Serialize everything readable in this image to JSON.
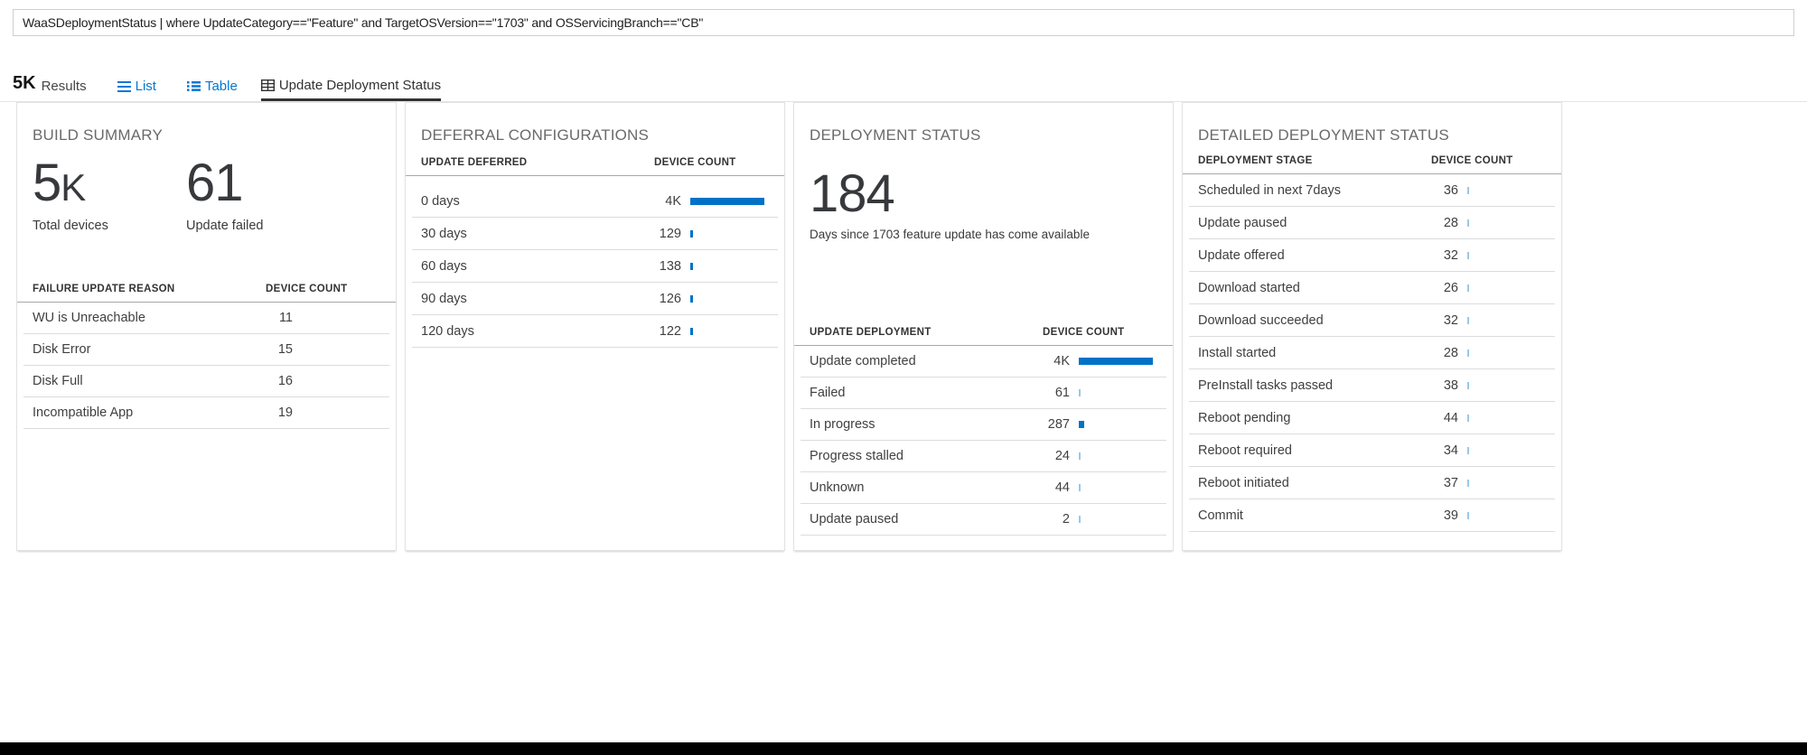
{
  "colors": {
    "accent_blue": "#0078d4",
    "bar_strong": "#0072c6",
    "bar_light": "#9cc7e8",
    "tab_active": "#323232"
  },
  "query_bar": {
    "text": "WaaSDeploymentStatus | where UpdateCategory==\"Feature\" and TargetOSVersion==\"1703\" and OSServicingBranch==\"CB\""
  },
  "results_bar": {
    "count": "5K",
    "count_label": "Results",
    "tabs": [
      {
        "label": "List",
        "icon": "list-icon"
      },
      {
        "label": "Table",
        "icon": "table-icon"
      },
      {
        "label": "Update Deployment Status",
        "icon": "grid-table-icon",
        "active": true
      }
    ]
  },
  "panels": {
    "build_summary": {
      "title": "BUILD SUMMARY",
      "stats": [
        {
          "value": "5",
          "suffix": "K",
          "label": "Total devices"
        },
        {
          "value": "61",
          "suffix": "",
          "label": "Update failed"
        }
      ],
      "table": {
        "headers": [
          "FAILURE UPDATE REASON",
          "DEVICE COUNT"
        ],
        "rows": [
          {
            "label": "WU is Unreachable",
            "count": "11"
          },
          {
            "label": "Disk Error",
            "count": "15"
          },
          {
            "label": "Disk Full",
            "count": "16"
          },
          {
            "label": "Incompatible App",
            "count": "19"
          }
        ]
      }
    },
    "deferral_configurations": {
      "title": "DEFERRAL CONFIGURATIONS",
      "table": {
        "headers": [
          "UPDATE DEFERRED",
          "DEVICE COUNT"
        ],
        "rows": [
          {
            "label": "0 days",
            "count": "4K",
            "numeric": 4000,
            "bar": "strong"
          },
          {
            "label": "30 days",
            "count": "129",
            "numeric": 129,
            "bar": "strong"
          },
          {
            "label": "60 days",
            "count": "138",
            "numeric": 138,
            "bar": "strong"
          },
          {
            "label": "90 days",
            "count": "126",
            "numeric": 126,
            "bar": "strong"
          },
          {
            "label": "120 days",
            "count": "122",
            "numeric": 122,
            "bar": "strong"
          }
        ]
      }
    },
    "deployment_status": {
      "title": "DEPLOYMENT STATUS",
      "stat": {
        "value": "184",
        "label": "Days since 1703 feature update has come available"
      },
      "table": {
        "headers": [
          "UPDATE DEPLOYMENT",
          "DEVICE COUNT"
        ],
        "rows": [
          {
            "label": "Update completed",
            "count": "4K",
            "numeric": 4000,
            "bar": "strong"
          },
          {
            "label": "Failed",
            "count": "61",
            "numeric": 61,
            "bar": "light"
          },
          {
            "label": "In progress",
            "count": "287",
            "numeric": 287,
            "bar": "strong"
          },
          {
            "label": "Progress stalled",
            "count": "24",
            "numeric": 24,
            "bar": "light"
          },
          {
            "label": "Unknown",
            "count": "44",
            "numeric": 44,
            "bar": "light"
          },
          {
            "label": "Update paused",
            "count": "2",
            "numeric": 2,
            "bar": "light"
          }
        ]
      }
    },
    "detailed_deployment_status": {
      "title": "DETAILED DEPLOYMENT STATUS",
      "table": {
        "headers": [
          "DEPLOYMENT STAGE",
          "DEVICE COUNT"
        ],
        "rows": [
          {
            "label": "Scheduled in next 7days",
            "count": "36",
            "numeric": 36,
            "bar": "light"
          },
          {
            "label": "Update paused",
            "count": "28",
            "numeric": 28,
            "bar": "light"
          },
          {
            "label": "Update offered",
            "count": "32",
            "numeric": 32,
            "bar": "light"
          },
          {
            "label": "Download started",
            "count": "26",
            "numeric": 26,
            "bar": "light"
          },
          {
            "label": "Download succeeded",
            "count": "32",
            "numeric": 32,
            "bar": "light"
          },
          {
            "label": "Install started",
            "count": "28",
            "numeric": 28,
            "bar": "light"
          },
          {
            "label": "PreInstall tasks passed",
            "count": "38",
            "numeric": 38,
            "bar": "light"
          },
          {
            "label": "Reboot pending",
            "count": "44",
            "numeric": 44,
            "bar": "light"
          },
          {
            "label": "Reboot required",
            "count": "34",
            "numeric": 34,
            "bar": "light"
          },
          {
            "label": "Reboot initiated",
            "count": "37",
            "numeric": 37,
            "bar": "light"
          },
          {
            "label": "Commit",
            "count": "39",
            "numeric": 39,
            "bar": "light"
          }
        ]
      }
    }
  }
}
